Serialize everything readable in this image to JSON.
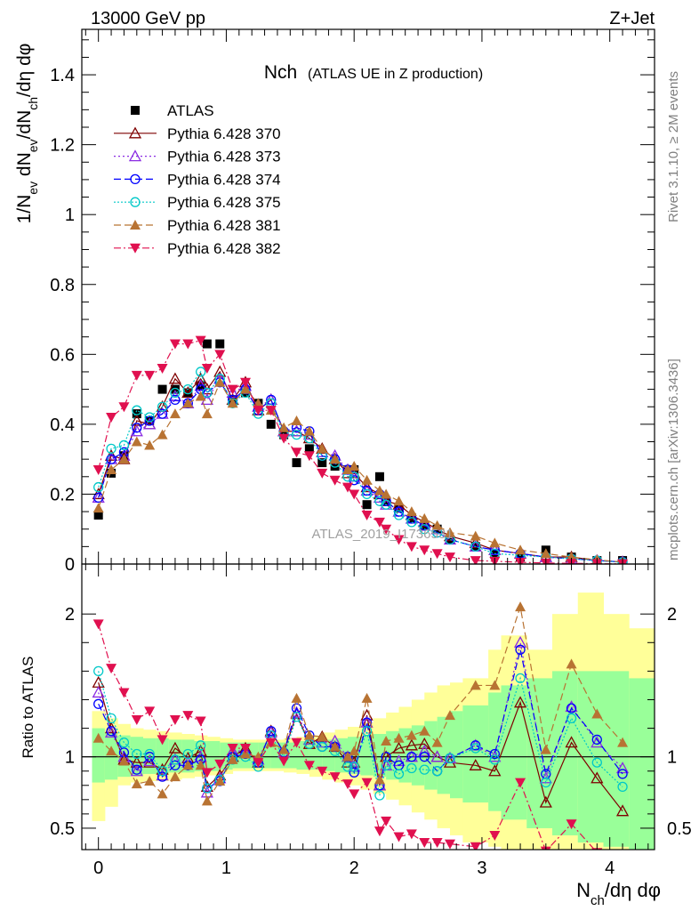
{
  "header": {
    "left": "13000 GeV pp",
    "right": "Z+Jet"
  },
  "side": {
    "rivet": "Rivet 3.1.10, ≥ 2M events",
    "mcplots": "mcplots.cern.ch [arXiv:1306.3436]"
  },
  "watermark": "ATLAS_2019_I1736531",
  "colors": {
    "ATLAS": "#000000",
    "370": "#7f0000",
    "373": "#8a2be2",
    "374": "#0000ff",
    "375": "#00c8c8",
    "381": "#b87333",
    "382": "#e0104f",
    "band_outer": "#ffff99",
    "band_inner": "#99ff99"
  },
  "chart_data": [
    {
      "type": "scatter",
      "title": "Nch",
      "subtitle": "(ATLAS UE in Z production)",
      "ylabel": "1/N_ev dN_ev/dN_ch/dη dφ",
      "ylim": [
        0,
        1.53
      ],
      "xlim": [
        -0.13,
        4.35
      ],
      "yticks": [
        "0",
        "0.2",
        "0.4",
        "0.6",
        "0.8",
        "1",
        "1.2",
        "1.4"
      ],
      "legend_position": "top-left",
      "x": [
        0.0,
        0.1,
        0.2,
        0.3,
        0.4,
        0.5,
        0.6,
        0.7,
        0.8,
        0.85,
        0.95,
        1.05,
        1.15,
        1.25,
        1.35,
        1.45,
        1.55,
        1.65,
        1.75,
        1.85,
        1.95,
        2.0,
        2.1,
        2.2,
        2.25,
        2.35,
        2.45,
        2.55,
        2.65,
        2.75,
        2.95,
        3.1,
        3.3,
        3.5,
        3.7,
        3.9,
        4.1
      ],
      "series": [
        {
          "name": "ATLAS",
          "key": "ATLAS",
          "style": "data",
          "values": [
            0.14,
            0.26,
            0.31,
            0.43,
            0.41,
            0.5,
            0.5,
            0.49,
            0.51,
            0.63,
            0.63,
            0.47,
            0.49,
            0.46,
            0.4,
            0.37,
            0.29,
            0.33,
            0.29,
            0.28,
            0.27,
            0.27,
            0.17,
            0.25,
            0.18,
            0.16,
            0.13,
            0.11,
            0.1,
            0.07,
            0.05,
            0.03,
            0.02,
            0.04,
            0.02,
            0.01,
            0.01
          ]
        },
        {
          "name": "Pythia 6.428 370",
          "key": "370",
          "style": "tri-up-open",
          "dash": "",
          "values": [
            0.2,
            0.31,
            0.3,
            0.41,
            0.4,
            0.45,
            0.53,
            0.49,
            0.53,
            0.5,
            0.55,
            0.47,
            0.52,
            0.44,
            0.47,
            0.38,
            0.38,
            0.36,
            0.33,
            0.3,
            0.26,
            0.26,
            0.22,
            0.2,
            0.18,
            0.17,
            0.14,
            0.12,
            0.1,
            0.08,
            0.06,
            0.04,
            0.03,
            0.02,
            0.02,
            0.01,
            0.006
          ]
        },
        {
          "name": "Pythia 6.428 373",
          "key": "373",
          "style": "tri-up-open",
          "dash": "2,3",
          "values": [
            0.19,
            0.3,
            0.31,
            0.38,
            0.4,
            0.43,
            0.48,
            0.46,
            0.51,
            0.47,
            0.53,
            0.49,
            0.51,
            0.45,
            0.47,
            0.38,
            0.38,
            0.37,
            0.32,
            0.31,
            0.27,
            0.25,
            0.21,
            0.19,
            0.17,
            0.15,
            0.13,
            0.11,
            0.1,
            0.07,
            0.05,
            0.04,
            0.03,
            0.02,
            0.015,
            0.01,
            0.006
          ]
        },
        {
          "name": "Pythia 6.428 374",
          "key": "374",
          "style": "circ-open",
          "dash": "8,4",
          "values": [
            0.19,
            0.3,
            0.32,
            0.39,
            0.41,
            0.43,
            0.47,
            0.46,
            0.5,
            0.49,
            0.52,
            0.47,
            0.5,
            0.44,
            0.47,
            0.38,
            0.39,
            0.38,
            0.31,
            0.3,
            0.27,
            0.24,
            0.21,
            0.2,
            0.18,
            0.15,
            0.13,
            0.11,
            0.09,
            0.07,
            0.05,
            0.04,
            0.03,
            0.02,
            0.015,
            0.01,
            0.006
          ]
        },
        {
          "name": "Pythia 6.428 375",
          "key": "375",
          "style": "circ-open",
          "dash": "2,2",
          "values": [
            0.22,
            0.33,
            0.34,
            0.44,
            0.42,
            0.45,
            0.49,
            0.5,
            0.55,
            0.49,
            0.53,
            0.46,
            0.49,
            0.43,
            0.46,
            0.37,
            0.37,
            0.36,
            0.31,
            0.29,
            0.25,
            0.25,
            0.2,
            0.18,
            0.17,
            0.14,
            0.12,
            0.1,
            0.09,
            0.07,
            0.05,
            0.03,
            0.025,
            0.02,
            0.015,
            0.01,
            0.005
          ]
        },
        {
          "name": "Pythia 6.428 381",
          "key": "381",
          "style": "tri-up-filled",
          "dash": "8,4",
          "values": [
            0.16,
            0.27,
            0.3,
            0.35,
            0.34,
            0.37,
            0.43,
            0.46,
            0.48,
            0.43,
            0.52,
            0.46,
            0.5,
            0.46,
            0.44,
            0.39,
            0.41,
            0.38,
            0.33,
            0.3,
            0.27,
            0.28,
            0.24,
            0.21,
            0.2,
            0.18,
            0.15,
            0.13,
            0.11,
            0.09,
            0.08,
            0.06,
            0.04,
            0.03,
            0.02,
            0.012,
            0.006
          ]
        },
        {
          "name": "Pythia 6.428 382",
          "key": "382",
          "style": "tri-down-filled",
          "dash": "8,3,2,3",
          "values": [
            0.27,
            0.42,
            0.45,
            0.54,
            0.54,
            0.56,
            0.63,
            0.63,
            0.64,
            0.56,
            0.6,
            0.5,
            0.52,
            0.44,
            0.44,
            0.36,
            0.32,
            0.31,
            0.26,
            0.24,
            0.22,
            0.2,
            0.14,
            0.12,
            0.1,
            0.07,
            0.05,
            0.04,
            0.03,
            0.02,
            0.01,
            0.008,
            0.005,
            0.003,
            0.002,
            0.001,
            0.0005
          ]
        }
      ]
    },
    {
      "type": "line",
      "ylabel": "Ratio to ATLAS",
      "xlabel": "N_ch/dη dφ",
      "ylim": [
        0.35,
        2.35
      ],
      "xlim": [
        -0.13,
        4.35
      ],
      "yticks": [
        "0.5",
        "1",
        "2"
      ],
      "xticks": [
        "0",
        "1",
        "2",
        "3",
        "4"
      ],
      "reference": 1,
      "band_edges": [
        -0.05,
        0.05,
        0.15,
        0.25,
        0.35,
        0.45,
        0.55,
        0.65,
        0.75,
        0.85,
        0.95,
        1.05,
        1.15,
        1.25,
        1.35,
        1.45,
        1.55,
        1.65,
        1.75,
        1.85,
        1.95,
        2.05,
        2.15,
        2.25,
        2.35,
        2.45,
        2.55,
        2.65,
        2.75,
        2.85,
        3.05,
        3.15,
        3.35,
        3.55,
        3.75,
        3.95,
        4.15,
        4.35
      ],
      "band_outer_lo": [
        0.55,
        0.65,
        0.8,
        0.82,
        0.83,
        0.83,
        0.84,
        0.85,
        0.86,
        0.87,
        0.88,
        0.9,
        0.9,
        0.9,
        0.9,
        0.89,
        0.88,
        0.86,
        0.84,
        0.82,
        0.8,
        0.77,
        0.74,
        0.7,
        0.66,
        0.61,
        0.56,
        0.5,
        0.45,
        0.4,
        0.37,
        0.35,
        0.35,
        0.35,
        0.35,
        0.35,
        0.35
      ],
      "band_outer_hi": [
        1.32,
        1.27,
        1.23,
        1.2,
        1.19,
        1.18,
        1.17,
        1.16,
        1.15,
        1.14,
        1.13,
        1.12,
        1.12,
        1.12,
        1.12,
        1.13,
        1.14,
        1.15,
        1.17,
        1.19,
        1.21,
        1.24,
        1.27,
        1.31,
        1.35,
        1.4,
        1.45,
        1.5,
        1.52,
        1.55,
        1.75,
        1.85,
        1.75,
        2.0,
        2.15,
        2.0,
        1.9
      ],
      "band_inner_lo": [
        0.82,
        0.84,
        0.86,
        0.87,
        0.88,
        0.88,
        0.89,
        0.89,
        0.9,
        0.9,
        0.91,
        0.92,
        0.92,
        0.92,
        0.92,
        0.92,
        0.91,
        0.91,
        0.9,
        0.89,
        0.88,
        0.87,
        0.86,
        0.84,
        0.82,
        0.8,
        0.77,
        0.74,
        0.71,
        0.68,
        0.62,
        0.56,
        0.5,
        0.45,
        0.4,
        0.37,
        0.35
      ],
      "band_inner_hi": [
        1.2,
        1.17,
        1.15,
        1.14,
        1.13,
        1.13,
        1.12,
        1.12,
        1.11,
        1.11,
        1.1,
        1.1,
        1.1,
        1.1,
        1.1,
        1.1,
        1.11,
        1.11,
        1.12,
        1.13,
        1.14,
        1.15,
        1.16,
        1.18,
        1.2,
        1.22,
        1.25,
        1.28,
        1.32,
        1.36,
        1.45,
        1.5,
        1.55,
        1.6,
        1.6,
        1.6,
        1.55
      ],
      "series": [
        {
          "name": "Pythia 6.428 370",
          "key": "370",
          "style": "tri-up-open",
          "dash": "",
          "values": [
            1.52,
            1.2,
            0.98,
            0.96,
            0.96,
            0.91,
            1.06,
            0.99,
            1.04,
            0.79,
            0.87,
            1.0,
            1.06,
            0.96,
            1.18,
            1.03,
            1.3,
            1.09,
            1.14,
            1.07,
            0.96,
            0.96,
            1.29,
            0.8,
            1.0,
            1.06,
            1.08,
            1.09,
            1.0,
            0.96,
            0.94,
            0.9,
            1.38,
            0.68,
            1.1,
            0.85,
            0.62
          ]
        },
        {
          "name": "Pythia 6.428 373",
          "key": "373",
          "style": "tri-up-open",
          "dash": "2,3",
          "values": [
            1.45,
            1.17,
            1.0,
            0.9,
            0.97,
            0.87,
            0.98,
            0.96,
            1.0,
            0.75,
            0.85,
            1.04,
            1.04,
            0.98,
            1.17,
            1.03,
            1.31,
            1.12,
            1.1,
            1.11,
            1.0,
            0.93,
            1.24,
            0.8,
            0.94,
            0.97,
            1.0,
            1.04,
            1.0,
            0.99,
            1.08,
            1.0,
            1.8,
            0.85,
            1.35,
            1.1,
            0.92
          ]
        },
        {
          "name": "Pythia 6.428 374",
          "key": "374",
          "style": "circ-open",
          "dash": "8,4",
          "values": [
            1.37,
            1.18,
            1.03,
            0.91,
            1.0,
            0.86,
            0.94,
            0.94,
            0.98,
            0.78,
            0.83,
            1.0,
            1.02,
            0.96,
            1.18,
            1.03,
            1.34,
            1.15,
            1.07,
            1.07,
            1.0,
            0.89,
            1.24,
            0.8,
            1.0,
            0.94,
            1.0,
            1.0,
            0.9,
            0.99,
            1.08,
            1.02,
            1.75,
            0.88,
            1.34,
            1.12,
            0.88
          ]
        },
        {
          "name": "Pythia 6.428 375",
          "key": "375",
          "style": "circ-open",
          "dash": "2,2",
          "values": [
            1.6,
            1.27,
            1.1,
            1.02,
            1.02,
            0.9,
            0.98,
            1.02,
            1.08,
            0.78,
            0.84,
            0.98,
            1.0,
            0.93,
            1.15,
            1.0,
            1.28,
            1.09,
            1.07,
            1.04,
            0.93,
            0.93,
            1.18,
            0.73,
            0.94,
            0.88,
            0.92,
            0.91,
            0.9,
            0.99,
            1.06,
            0.98,
            1.55,
            0.82,
            1.27,
            0.96,
            0.79
          ]
        },
        {
          "name": "Pythia 6.428 381",
          "key": "381",
          "style": "tri-up-filled",
          "dash": "8,4",
          "values": [
            1.13,
            1.04,
            0.97,
            0.81,
            0.83,
            0.74,
            0.86,
            0.94,
            0.94,
            0.69,
            0.83,
            0.98,
            1.02,
            1.0,
            1.1,
            1.05,
            1.41,
            1.15,
            1.14,
            1.07,
            1.0,
            1.04,
            1.41,
            0.84,
            1.11,
            1.13,
            1.15,
            1.18,
            1.1,
            1.29,
            1.5,
            1.5,
            2.05,
            1.05,
            1.65,
            1.3,
            1.1
          ]
        },
        {
          "name": "Pythia 6.428 382",
          "key": "382",
          "style": "tri-down-filled",
          "dash": "8,3,2,3",
          "values": [
            1.93,
            1.62,
            1.45,
            1.26,
            1.32,
            1.12,
            1.26,
            1.29,
            1.25,
            0.89,
            0.95,
            1.06,
            1.06,
            0.96,
            1.1,
            0.97,
            1.1,
            0.94,
            0.9,
            0.86,
            0.81,
            0.74,
            0.82,
            0.48,
            0.55,
            0.44,
            0.46,
            0.4,
            0.4,
            0.39,
            0.37,
            0.45,
            0.82,
            0.34,
            0.53,
            0.33,
            0.3
          ]
        }
      ]
    }
  ]
}
